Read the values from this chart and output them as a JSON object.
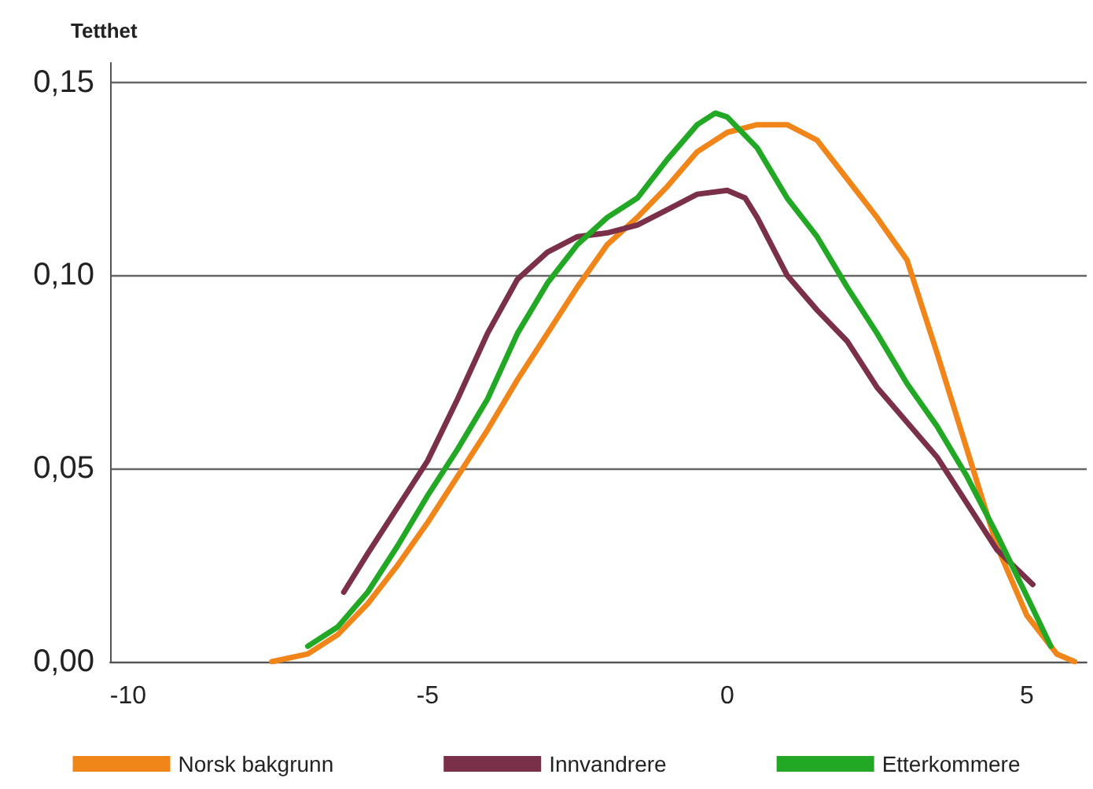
{
  "chart_data": {
    "type": "line",
    "ylabel": "Tetthet",
    "xlim": [
      -10.3,
      6
    ],
    "xticks": [
      -10,
      -5,
      0,
      5
    ],
    "ylim": [
      0,
      0.155
    ],
    "yticks": [
      {
        "value": 0,
        "label": "0,00"
      },
      {
        "value": 0.05,
        "label": "0,05"
      },
      {
        "value": 0.1,
        "label": "0,10"
      },
      {
        "value": 0.15,
        "label": "0,15"
      }
    ],
    "grid": "y",
    "legend": "bottom",
    "marker": "none",
    "line_style": "solid",
    "series": [
      {
        "name": "Norsk bakgrunn",
        "color": "#f0851a",
        "x": [
          -7.6,
          -7,
          -6.5,
          -6,
          -5.5,
          -5,
          -4.5,
          -4,
          -3.5,
          -3,
          -2.5,
          -2,
          -1.5,
          -1,
          -0.5,
          0,
          0.5,
          1,
          1.5,
          2,
          2.5,
          3,
          3.5,
          4,
          4.5,
          5,
          5.5,
          5.8
        ],
        "values": [
          0,
          0.002,
          0.007,
          0.015,
          0.025,
          0.036,
          0.048,
          0.06,
          0.073,
          0.085,
          0.097,
          0.108,
          0.115,
          0.123,
          0.132,
          0.137,
          0.139,
          0.139,
          0.135,
          0.125,
          0.115,
          0.104,
          0.08,
          0.055,
          0.03,
          0.012,
          0.002,
          0
        ]
      },
      {
        "name": "Innvandrere",
        "color": "#7a3048",
        "x": [
          -6.4,
          -6,
          -5.5,
          -5,
          -4.5,
          -4,
          -3.5,
          -3,
          -2.5,
          -2,
          -1.5,
          -1,
          -0.5,
          0,
          0.3,
          0.5,
          1,
          1.5,
          2,
          2.5,
          3,
          3.5,
          4,
          4.5,
          5.1
        ],
        "values": [
          0.018,
          0.028,
          0.04,
          0.052,
          0.068,
          0.085,
          0.099,
          0.106,
          0.11,
          0.111,
          0.113,
          0.117,
          0.121,
          0.122,
          0.12,
          0.115,
          0.1,
          0.091,
          0.083,
          0.071,
          0.062,
          0.053,
          0.041,
          0.029,
          0.02
        ]
      },
      {
        "name": "Etterkommere",
        "color": "#22a824",
        "x": [
          -7,
          -6.5,
          -6,
          -5.5,
          -5,
          -4.5,
          -4,
          -3.5,
          -3,
          -2.5,
          -2,
          -1.5,
          -1,
          -0.5,
          -0.2,
          0,
          0.5,
          1,
          1.5,
          2,
          2.5,
          3,
          3.5,
          4,
          4.5,
          5,
          5.4
        ],
        "values": [
          0.004,
          0.009,
          0.018,
          0.03,
          0.043,
          0.055,
          0.068,
          0.085,
          0.098,
          0.108,
          0.115,
          0.12,
          0.13,
          0.139,
          0.142,
          0.141,
          0.133,
          0.12,
          0.11,
          0.097,
          0.085,
          0.072,
          0.061,
          0.048,
          0.033,
          0.017,
          0.004
        ]
      }
    ]
  }
}
